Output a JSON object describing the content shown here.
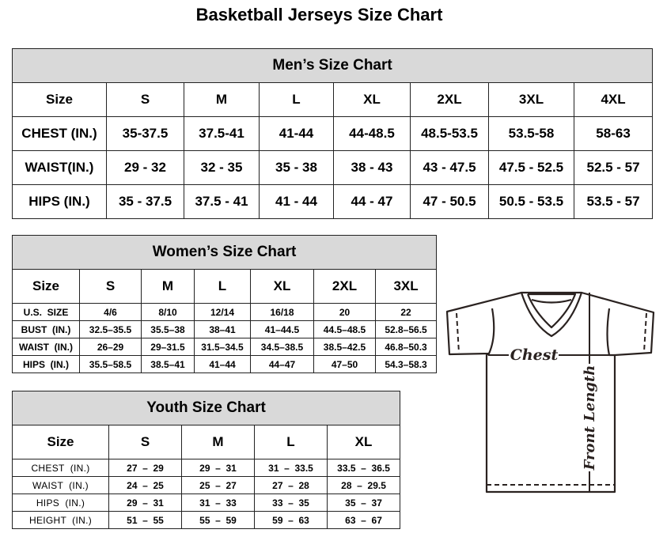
{
  "title": "Basketball Jerseys Size Chart",
  "men": {
    "heading": "Men’s Size Chart",
    "rows": [
      [
        "Size",
        "S",
        "M",
        "L",
        "XL",
        "2XL",
        "3XL",
        "4XL"
      ],
      [
        "CHEST (IN.)",
        "35-37.5",
        "37.5-41",
        "41-44",
        "44-48.5",
        "48.5-53.5",
        "53.5-58",
        "58-63"
      ],
      [
        "WAIST(IN.)",
        "29 - 32",
        "32 - 35",
        "35 - 38",
        "38 - 43",
        "43 - 47.5",
        "47.5 - 52.5",
        "52.5 - 57"
      ],
      [
        "HIPS (IN.)",
        "35 - 37.5",
        "37.5 - 41",
        "41 - 44",
        "44 - 47",
        "47 - 50.5",
        "50.5 - 53.5",
        "53.5 - 57"
      ]
    ]
  },
  "women": {
    "heading": "Women’s Size Chart",
    "rows": [
      [
        "Size",
        "S",
        "M",
        "L",
        "XL",
        "2XL",
        "3XL"
      ],
      [
        "U.S.  SIZE",
        "4/6",
        "8/10",
        "12/14",
        "16/18",
        "20",
        "22"
      ],
      [
        "BUST  (IN.)",
        "32.5–35.5",
        "35.5–38",
        "38–41",
        "41–44.5",
        "44.5–48.5",
        "52.8–56.5"
      ],
      [
        "WAIST  (IN.)",
        "26–29",
        "29–31.5",
        "31.5–34.5",
        "34.5–38.5",
        "38.5–42.5",
        "46.8–50.3"
      ],
      [
        "HIPS  (IN.)",
        "35.5–58.5",
        "38.5–41",
        "41–44",
        "44–47",
        "47–50",
        "54.3–58.3"
      ]
    ]
  },
  "youth": {
    "heading": "Youth Size Chart",
    "rows": [
      [
        "Size",
        "S",
        "M",
        "L",
        "XL"
      ],
      [
        "CHEST  (IN.)",
        "27  –  29",
        "29  –  31",
        "31  –  33.5",
        "33.5  –  36.5"
      ],
      [
        "WAIST  (IN.)",
        "24  –  25",
        "25  –  27",
        "27  –  28",
        "28  –  29.5"
      ],
      [
        "HIPS  (IN.)",
        "29  –  31",
        "31  –  33",
        "33  –  35",
        "35  –  37"
      ],
      [
        "HEIGHT  (IN.)",
        "51  –  55",
        "55  –  59",
        "59  –  63",
        "63  –  67"
      ]
    ]
  },
  "diagram": {
    "chest_label": "Chest",
    "length_label": "Front Length",
    "icon": "t-shirt-icon"
  }
}
